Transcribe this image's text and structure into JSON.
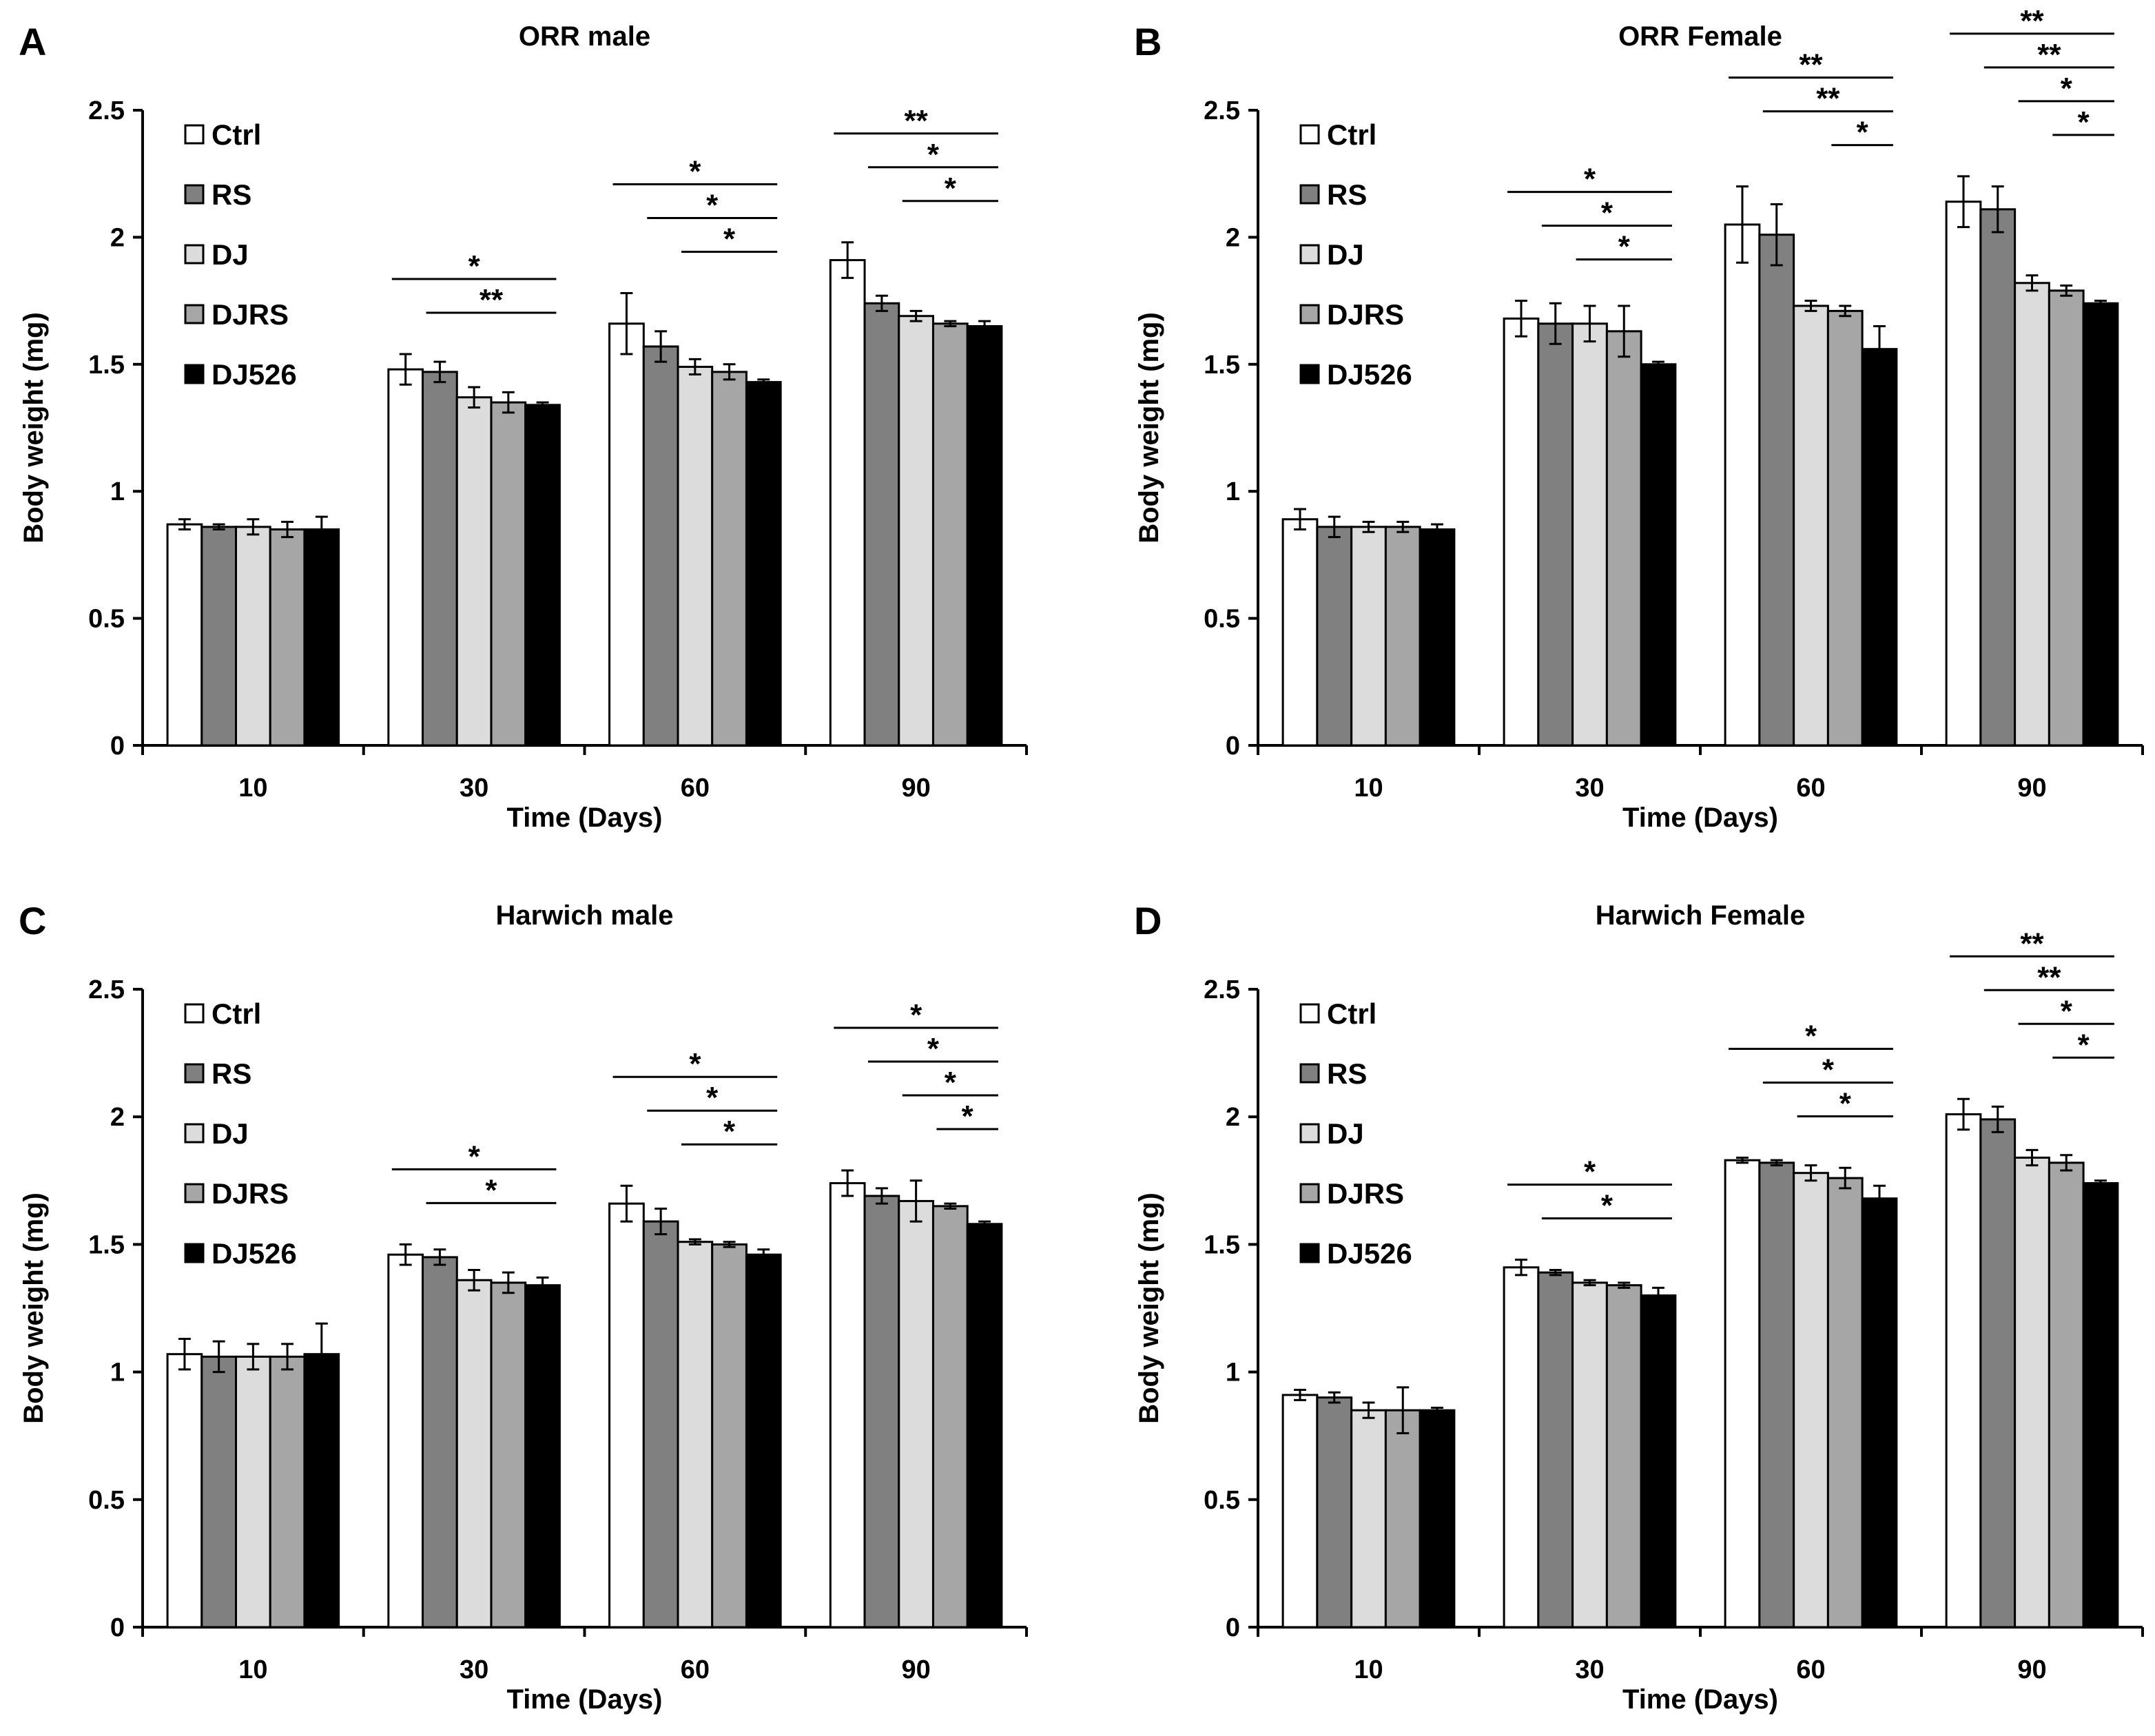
{
  "legend": [
    "Ctrl",
    "RS",
    "DJ",
    "DJRS",
    "DJ526"
  ],
  "series_colors": [
    "#ffffff",
    "#808080",
    "#dcdcdc",
    "#a6a6a6",
    "#000000"
  ],
  "chart_data": [
    {
      "panel": "A",
      "type": "bar",
      "title": "ORR male",
      "xlabel": "Time (Days)",
      "ylabel": "Body weight (mg)",
      "categories": [
        "10",
        "30",
        "60",
        "90"
      ],
      "ylim": [
        0,
        2.5
      ],
      "yticks": [
        "0",
        "0.5",
        "1",
        "1.5",
        "2",
        "2.5"
      ],
      "series": [
        {
          "name": "Ctrl",
          "values": [
            0.87,
            1.48,
            1.66,
            1.91
          ],
          "errors": [
            0.02,
            0.06,
            0.12,
            0.07
          ]
        },
        {
          "name": "RS",
          "values": [
            0.86,
            1.47,
            1.57,
            1.74
          ],
          "errors": [
            0.01,
            0.04,
            0.06,
            0.03
          ]
        },
        {
          "name": "DJ",
          "values": [
            0.86,
            1.37,
            1.49,
            1.69
          ],
          "errors": [
            0.03,
            0.04,
            0.03,
            0.02
          ]
        },
        {
          "name": "DJRS",
          "values": [
            0.85,
            1.35,
            1.47,
            1.66
          ],
          "errors": [
            0.03,
            0.04,
            0.03,
            0.01
          ]
        },
        {
          "name": "DJ526",
          "values": [
            0.85,
            1.34,
            1.43,
            1.65
          ],
          "errors": [
            0.05,
            0.01,
            0.01,
            0.02
          ]
        }
      ],
      "significance": [
        {
          "group": 1,
          "from": 0,
          "to": 4,
          "label": "*"
        },
        {
          "group": 1,
          "from": 1,
          "to": 4,
          "label": "**"
        },
        {
          "group": 2,
          "from": 0,
          "to": 4,
          "label": "*"
        },
        {
          "group": 2,
          "from": 1,
          "to": 4,
          "label": "*"
        },
        {
          "group": 2,
          "from": 2,
          "to": 4,
          "label": "*"
        },
        {
          "group": 3,
          "from": 0,
          "to": 4,
          "label": "**"
        },
        {
          "group": 3,
          "from": 1,
          "to": 4,
          "label": "*"
        },
        {
          "group": 3,
          "from": 2,
          "to": 4,
          "label": "*"
        }
      ]
    },
    {
      "panel": "B",
      "type": "bar",
      "title": "ORR Female",
      "xlabel": "Time (Days)",
      "ylabel": "Body weight (mg)",
      "categories": [
        "10",
        "30",
        "60",
        "90"
      ],
      "ylim": [
        0,
        2.5
      ],
      "yticks": [
        "0",
        "0.5",
        "1",
        "1.5",
        "2",
        "2.5"
      ],
      "series": [
        {
          "name": "Ctrl",
          "values": [
            0.89,
            1.68,
            2.05,
            2.14
          ],
          "errors": [
            0.04,
            0.07,
            0.15,
            0.1
          ]
        },
        {
          "name": "RS",
          "values": [
            0.86,
            1.66,
            2.01,
            2.11
          ],
          "errors": [
            0.04,
            0.08,
            0.12,
            0.09
          ]
        },
        {
          "name": "DJ",
          "values": [
            0.86,
            1.66,
            1.73,
            1.82
          ],
          "errors": [
            0.02,
            0.07,
            0.02,
            0.03
          ]
        },
        {
          "name": "DJRS",
          "values": [
            0.86,
            1.63,
            1.71,
            1.79
          ],
          "errors": [
            0.02,
            0.1,
            0.02,
            0.02
          ]
        },
        {
          "name": "DJ526",
          "values": [
            0.85,
            1.5,
            1.56,
            1.74
          ],
          "errors": [
            0.02,
            0.01,
            0.09,
            0.01
          ]
        }
      ],
      "significance": [
        {
          "group": 1,
          "from": 0,
          "to": 4,
          "label": "*"
        },
        {
          "group": 1,
          "from": 1,
          "to": 4,
          "label": "*"
        },
        {
          "group": 1,
          "from": 2,
          "to": 4,
          "label": "*"
        },
        {
          "group": 2,
          "from": 0,
          "to": 4,
          "label": "**"
        },
        {
          "group": 2,
          "from": 1,
          "to": 4,
          "label": "**"
        },
        {
          "group": 2,
          "from": 3,
          "to": 4,
          "label": "*"
        },
        {
          "group": 3,
          "from": 0,
          "to": 4,
          "label": "**"
        },
        {
          "group": 3,
          "from": 1,
          "to": 4,
          "label": "**"
        },
        {
          "group": 3,
          "from": 2,
          "to": 4,
          "label": "*"
        },
        {
          "group": 3,
          "from": 3,
          "to": 4,
          "label": "*"
        }
      ]
    },
    {
      "panel": "C",
      "type": "bar",
      "title": "Harwich male",
      "xlabel": "Time (Days)",
      "ylabel": "Body weight (mg)",
      "categories": [
        "10",
        "30",
        "60",
        "90"
      ],
      "ylim": [
        0,
        2.5
      ],
      "yticks": [
        "0",
        "0.5",
        "1",
        "1.5",
        "2",
        "2.5"
      ],
      "series": [
        {
          "name": "Ctrl",
          "values": [
            1.07,
            1.46,
            1.66,
            1.74
          ],
          "errors": [
            0.06,
            0.04,
            0.07,
            0.05
          ]
        },
        {
          "name": "RS",
          "values": [
            1.06,
            1.45,
            1.59,
            1.69
          ],
          "errors": [
            0.06,
            0.03,
            0.05,
            0.03
          ]
        },
        {
          "name": "DJ",
          "values": [
            1.06,
            1.36,
            1.51,
            1.67
          ],
          "errors": [
            0.05,
            0.04,
            0.01,
            0.08
          ]
        },
        {
          "name": "DJRS",
          "values": [
            1.06,
            1.35,
            1.5,
            1.65
          ],
          "errors": [
            0.05,
            0.04,
            0.01,
            0.01
          ]
        },
        {
          "name": "DJ526",
          "values": [
            1.07,
            1.34,
            1.46,
            1.58
          ],
          "errors": [
            0.12,
            0.03,
            0.02,
            0.01
          ]
        }
      ],
      "significance": [
        {
          "group": 1,
          "from": 0,
          "to": 4,
          "label": "*"
        },
        {
          "group": 1,
          "from": 1,
          "to": 4,
          "label": "*"
        },
        {
          "group": 2,
          "from": 0,
          "to": 4,
          "label": "*"
        },
        {
          "group": 2,
          "from": 1,
          "to": 4,
          "label": "*"
        },
        {
          "group": 2,
          "from": 2,
          "to": 4,
          "label": "*"
        },
        {
          "group": 3,
          "from": 0,
          "to": 4,
          "label": "*"
        },
        {
          "group": 3,
          "from": 1,
          "to": 4,
          "label": "*"
        },
        {
          "group": 3,
          "from": 2,
          "to": 4,
          "label": "*"
        },
        {
          "group": 3,
          "from": 3,
          "to": 4,
          "label": "*"
        }
      ]
    },
    {
      "panel": "D",
      "type": "bar",
      "title": "Harwich Female",
      "xlabel": "Time (Days)",
      "ylabel": "Body weight (mg)",
      "categories": [
        "10",
        "30",
        "60",
        "90"
      ],
      "ylim": [
        0,
        2.5
      ],
      "yticks": [
        "0",
        "0.5",
        "1",
        "1.5",
        "2",
        "2.5"
      ],
      "series": [
        {
          "name": "Ctrl",
          "values": [
            0.91,
            1.41,
            1.83,
            2.01
          ],
          "errors": [
            0.02,
            0.03,
            0.01,
            0.06
          ]
        },
        {
          "name": "RS",
          "values": [
            0.9,
            1.39,
            1.82,
            1.99
          ],
          "errors": [
            0.02,
            0.01,
            0.01,
            0.05
          ]
        },
        {
          "name": "DJ",
          "values": [
            0.85,
            1.35,
            1.78,
            1.84
          ],
          "errors": [
            0.03,
            0.01,
            0.03,
            0.03
          ]
        },
        {
          "name": "DJRS",
          "values": [
            0.85,
            1.34,
            1.76,
            1.82
          ],
          "errors": [
            0.09,
            0.01,
            0.04,
            0.03
          ]
        },
        {
          "name": "DJ526",
          "values": [
            0.85,
            1.3,
            1.68,
            1.74
          ],
          "errors": [
            0.01,
            0.03,
            0.05,
            0.01
          ]
        }
      ],
      "significance": [
        {
          "group": 1,
          "from": 0,
          "to": 4,
          "label": "*"
        },
        {
          "group": 1,
          "from": 1,
          "to": 4,
          "label": "*"
        },
        {
          "group": 2,
          "from": 0,
          "to": 4,
          "label": "*"
        },
        {
          "group": 2,
          "from": 1,
          "to": 4,
          "label": "*"
        },
        {
          "group": 2,
          "from": 2,
          "to": 4,
          "label": "*"
        },
        {
          "group": 3,
          "from": 0,
          "to": 4,
          "label": "**"
        },
        {
          "group": 3,
          "from": 1,
          "to": 4,
          "label": "**"
        },
        {
          "group": 3,
          "from": 2,
          "to": 4,
          "label": "*"
        },
        {
          "group": 3,
          "from": 3,
          "to": 4,
          "label": "*"
        }
      ]
    }
  ]
}
